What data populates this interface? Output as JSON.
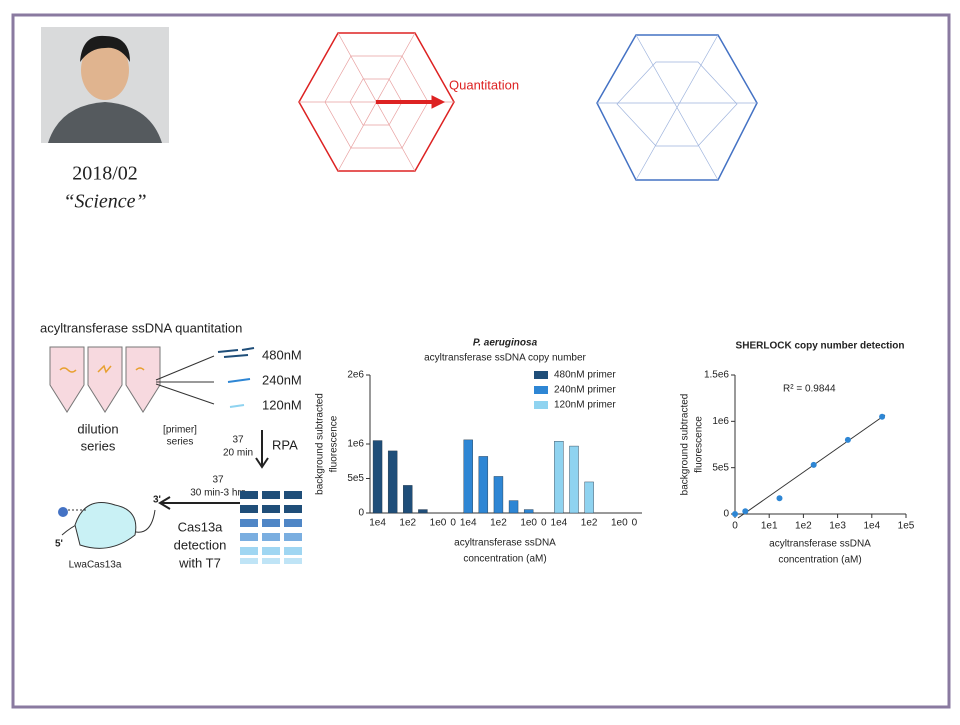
{
  "slide": {
    "date": "2018/02",
    "journal": "“Science”",
    "radar_label": "Quantitation"
  },
  "diagram": {
    "title": "acyltransferase ssDNA quantitation",
    "primers": [
      "480nM",
      "240nM",
      "120nM"
    ],
    "dilution": [
      "dilution",
      "series"
    ],
    "primer_series": [
      "[primer]",
      "series"
    ],
    "rpa_temp": [
      "37",
      "20 min"
    ],
    "rpa": "RPA",
    "cas_temp": [
      "37",
      "30 min-3 hrs"
    ],
    "detection": [
      "Cas13a",
      "detection",
      "with T7"
    ],
    "enzyme": "LwaCas13a",
    "end3": "3'",
    "end5": "5'"
  },
  "chart_data": [
    {
      "type": "bar",
      "title": "P. aeruginosa",
      "subtitle": "acyltransferase ssDNA copy number",
      "ylabel": [
        "background subtracted",
        "fluorescence"
      ],
      "xlabel": [
        "acyltransferase ssDNA",
        "concentration (aM)"
      ],
      "categories": [
        "1e4",
        null,
        "1e2",
        null,
        "1e0",
        "0"
      ],
      "series": [
        {
          "name": "480nM primer",
          "color": "#1f4e79",
          "values": [
            1050000,
            900000,
            400000,
            50000,
            0,
            0
          ]
        },
        {
          "name": "240nM primer",
          "color": "#2e86d4",
          "values": [
            1060000,
            820000,
            530000,
            180000,
            50000,
            0
          ]
        },
        {
          "name": "120nM primer",
          "color": "#8fd3f0",
          "values": [
            1040000,
            970000,
            450000,
            0,
            0,
            0
          ]
        }
      ],
      "ylim": [
        0,
        2000000
      ],
      "yticks": [
        0,
        {
          "value": 500000,
          "label": "5e5"
        },
        {
          "value": 1000000,
          "label": "1e6"
        },
        {
          "value": 2000000,
          "label": "2e6"
        }
      ],
      "legend": "top-right"
    },
    {
      "type": "scatter",
      "title": "SHERLOCK copy number detection",
      "ylabel": [
        "background subtracted",
        "fluorescence"
      ],
      "xlabel": [
        "acyltransferase ssDNA",
        "concentration (aM)"
      ],
      "annotation": "R² = 0.9844",
      "color": "#2e86d4",
      "xscale": "log",
      "x": [
        0,
        2,
        20,
        200,
        2000,
        20000
      ],
      "values": [
        0,
        30000,
        170000,
        530000,
        800000,
        1050000
      ],
      "xlim": [
        1,
        100000
      ],
      "xticks": [
        0,
        {
          "value": 10,
          "label": "1e1"
        },
        {
          "value": 100,
          "label": "1e2"
        },
        {
          "value": 1000,
          "label": "1e3"
        },
        {
          "value": 10000,
          "label": "1e4"
        },
        {
          "value": 100000,
          "label": "1e5"
        }
      ],
      "ylim": [
        0,
        1500000
      ],
      "yticks": [
        0,
        {
          "value": 500000,
          "label": "5e5"
        },
        {
          "value": 1000000,
          "label": "1e6"
        },
        {
          "value": 1500000,
          "label": "1.5e6"
        }
      ]
    }
  ]
}
